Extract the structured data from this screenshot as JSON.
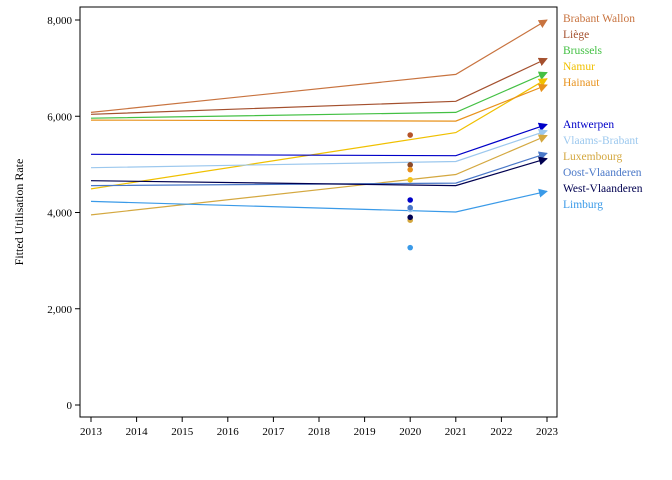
{
  "chart_data": {
    "type": "line",
    "title": "",
    "xlabel": "",
    "ylabel": "Fitted Utilisation Rate",
    "xlim": [
      2013,
      2023
    ],
    "ylim": [
      0,
      8000
    ],
    "x_ticks": [
      "2013",
      "2014",
      "2015",
      "2016",
      "2017",
      "2018",
      "2019",
      "2020",
      "2021",
      "2022",
      "2023"
    ],
    "y_ticks": [
      "0",
      "2,000",
      "4,000",
      "6,000",
      "8,000"
    ],
    "y_tick_values": [
      0,
      2000,
      4000,
      6000,
      8000
    ],
    "grid": false,
    "legend_position": "right",
    "series": [
      {
        "name": "Brabant Wallon",
        "color": "#c8733f",
        "x": [
          2013,
          2021,
          2023
        ],
        "y": [
          6080,
          6870,
          8000
        ],
        "point_2020": 5610,
        "point_color": "#b5532a"
      },
      {
        "name": "Liège",
        "color": "#a4502e",
        "x": [
          2013,
          2021,
          2023
        ],
        "y": [
          6040,
          6310,
          7200
        ],
        "point_2020": 4990,
        "point_color": "#8b4a2b"
      },
      {
        "name": "Brussels",
        "color": "#44c044",
        "x": [
          2013,
          2021,
          2023
        ],
        "y": [
          5960,
          6080,
          6910
        ],
        "point_2020": null,
        "point_color": null
      },
      {
        "name": "Namur",
        "color": "#f0c000",
        "x": [
          2013,
          2021,
          2023
        ],
        "y": [
          4490,
          5660,
          6780
        ],
        "point_2020": 4680,
        "point_color": "#f5c518"
      },
      {
        "name": "Hainaut",
        "color": "#e8921c",
        "x": [
          2013,
          2021,
          2023
        ],
        "y": [
          5920,
          5900,
          6650
        ],
        "point_2020": 4890,
        "point_color": "#e8921c"
      },
      {
        "name": "Antwerpen",
        "color": "#0000c8",
        "x": [
          2013,
          2021,
          2023
        ],
        "y": [
          5210,
          5180,
          5830
        ],
        "point_2020": 4260,
        "point_color": "#0000c8"
      },
      {
        "name": "Vlaams-Brabant",
        "color": "#9cc8ee",
        "x": [
          2013,
          2021,
          2023
        ],
        "y": [
          4930,
          5060,
          5700
        ],
        "point_2020": 4060,
        "point_color": "#9cc8ee"
      },
      {
        "name": "Luxembourg",
        "color": "#d4a840",
        "x": [
          2013,
          2021,
          2023
        ],
        "y": [
          3950,
          4790,
          5600
        ],
        "point_2020": 3840,
        "point_color": "#d4a840"
      },
      {
        "name": "Oost-Vlaanderen",
        "color": "#4a78c8",
        "x": [
          2013,
          2021,
          2023
        ],
        "y": [
          4560,
          4610,
          5230
        ],
        "point_2020": 4100,
        "point_color": "#4a78c8"
      },
      {
        "name": "West-Vlaanderen",
        "color": "#000050",
        "x": [
          2013,
          2021,
          2023
        ],
        "y": [
          4660,
          4560,
          5120
        ],
        "point_2020": 3900,
        "point_color": "#000050"
      },
      {
        "name": "Limburg",
        "color": "#3a9ae8",
        "x": [
          2013,
          2021,
          2023
        ],
        "y": [
          4230,
          4010,
          4440
        ],
        "point_2020": 3270,
        "point_color": "#3a9ae8"
      }
    ]
  }
}
